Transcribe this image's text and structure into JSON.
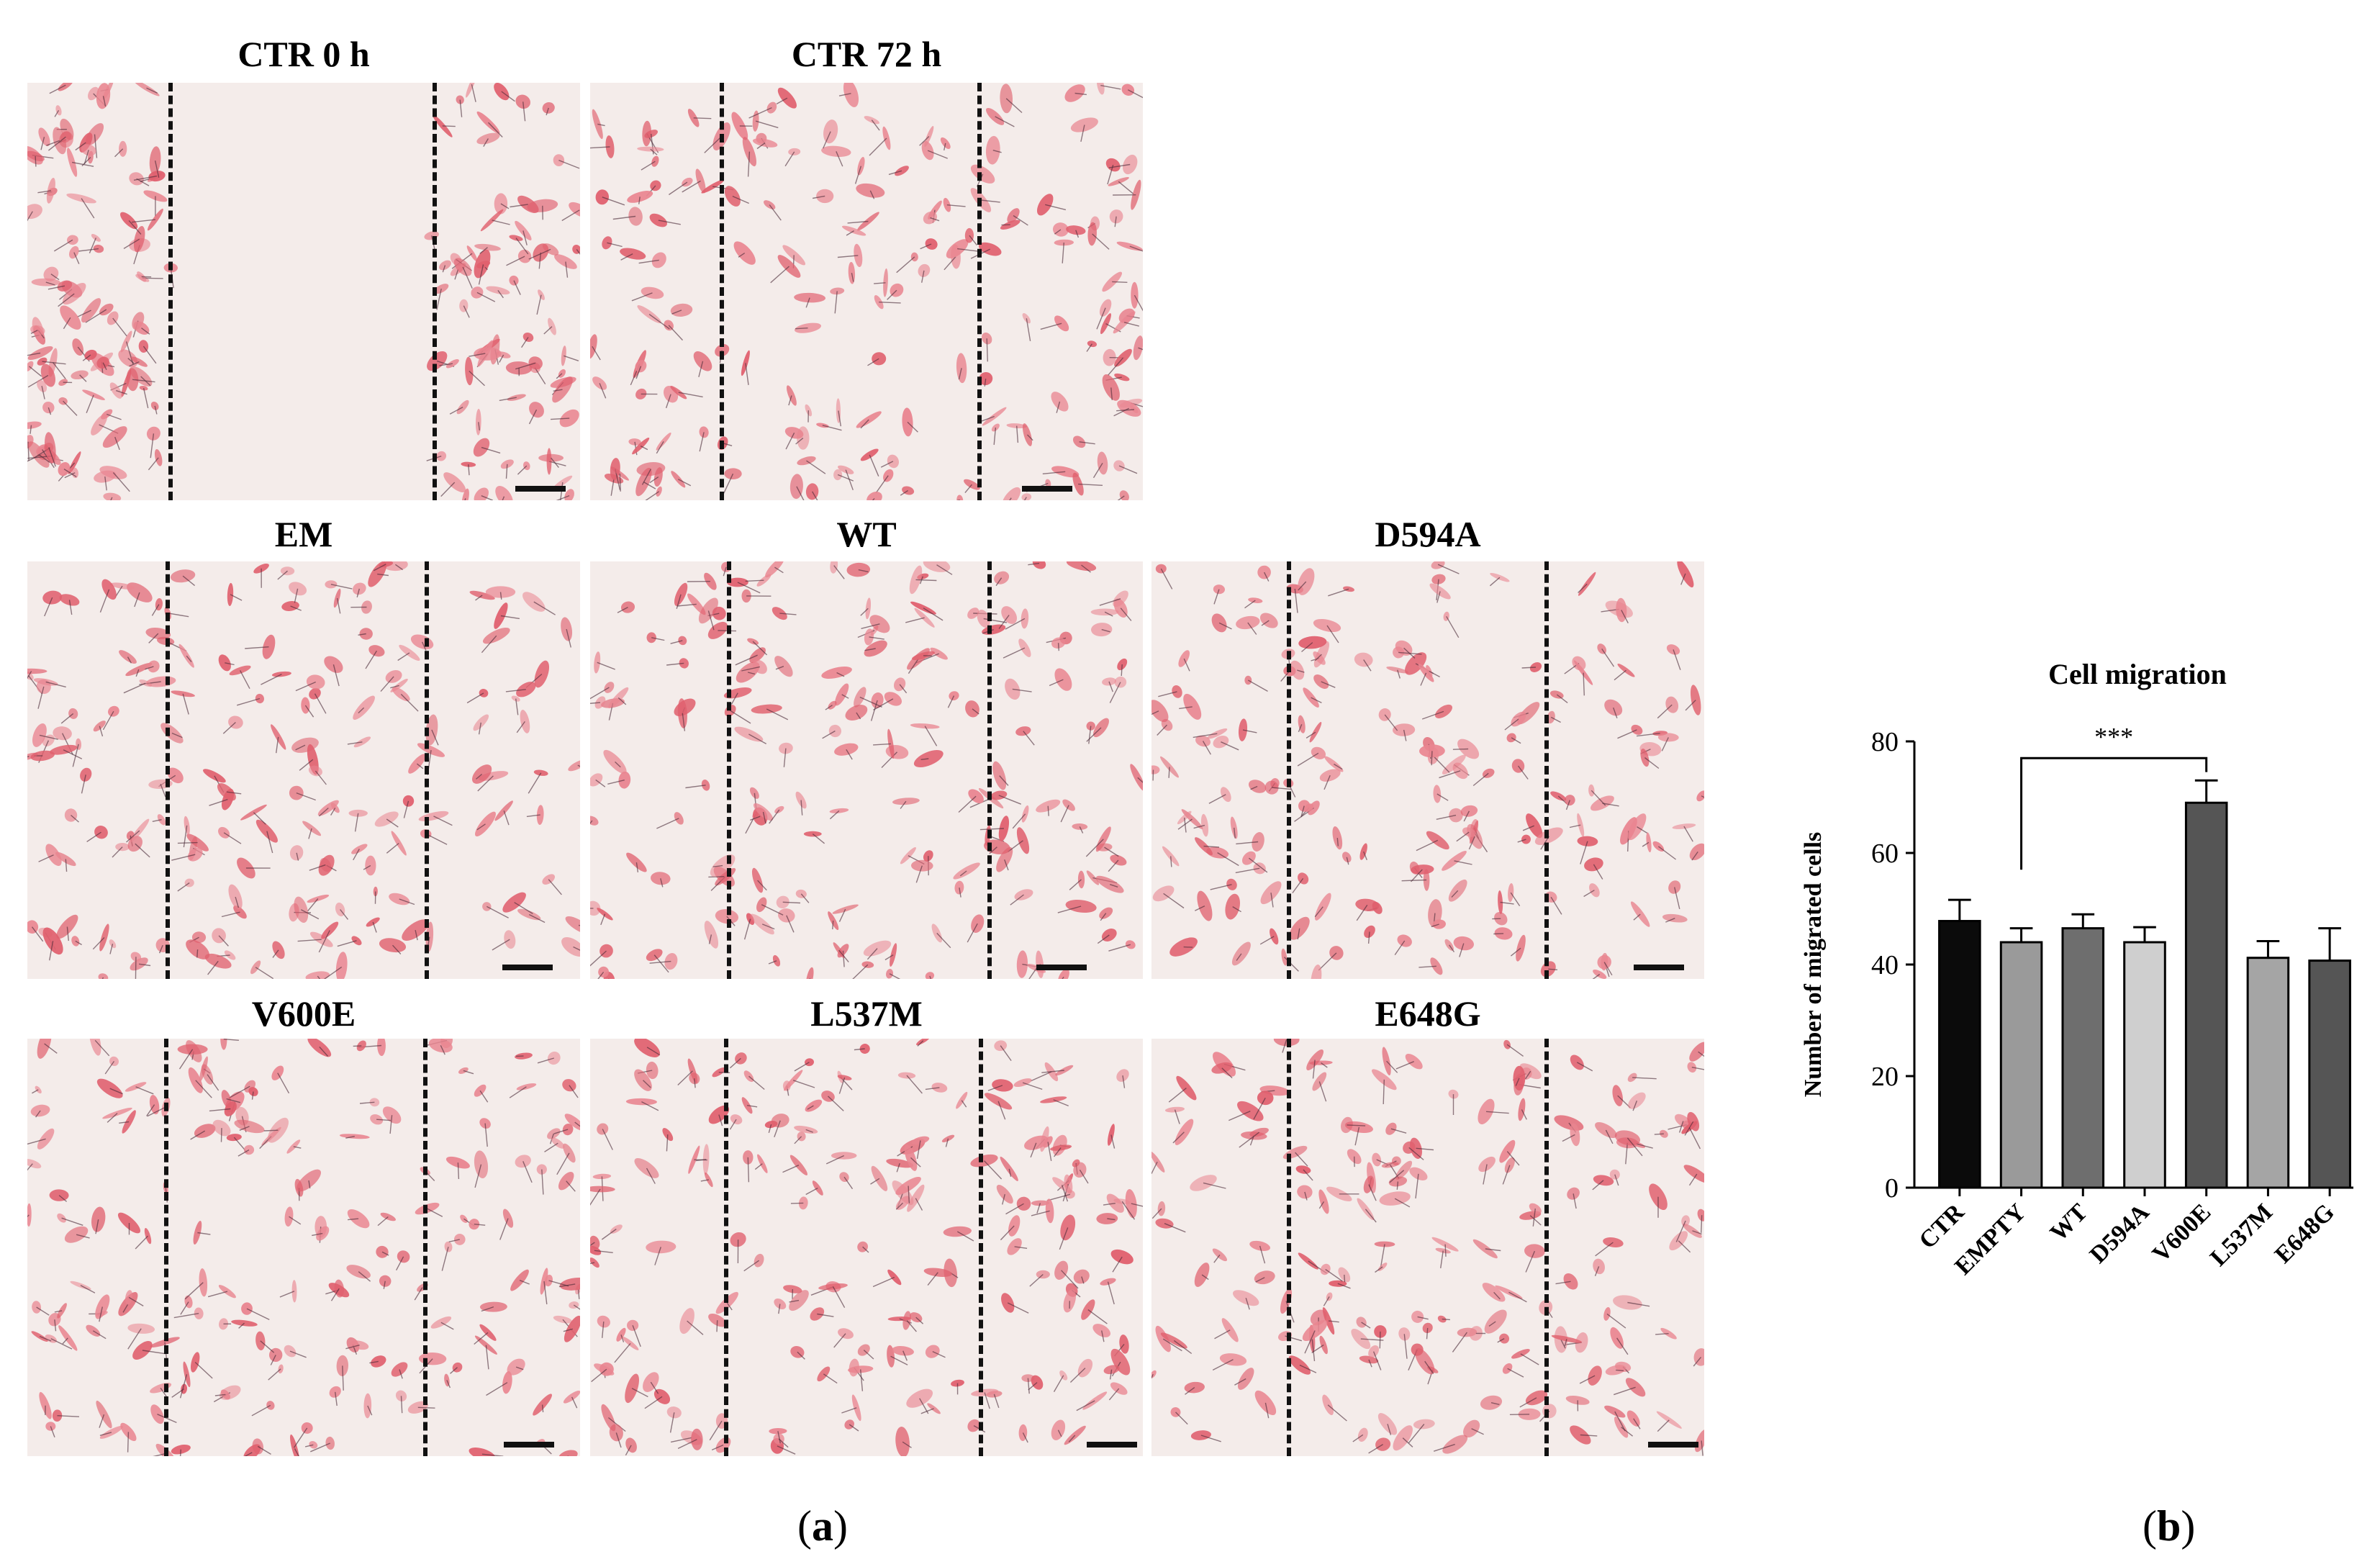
{
  "panel_a": {
    "label": "a",
    "micrographs": [
      {
        "label": "CTR 0 h"
      },
      {
        "label": "CTR 72 h"
      },
      {
        "label": "EM"
      },
      {
        "label": "WT"
      },
      {
        "label": "D594A"
      },
      {
        "label": "V600E"
      },
      {
        "label": "L537M"
      },
      {
        "label": "E648G"
      }
    ]
  },
  "panel_b": {
    "label": "b"
  },
  "chart_data": {
    "type": "bar",
    "title": "Cell migration",
    "xlabel": "",
    "ylabel": "Number of migrated cells",
    "ylim": [
      0,
      80
    ],
    "yticks": [
      0,
      20,
      40,
      60,
      80
    ],
    "categories": [
      "CTR",
      "EMPTY",
      "WT",
      "D594A",
      "V600E",
      "L537M",
      "E648G"
    ],
    "values": [
      47.8,
      44.0,
      46.5,
      44.0,
      69.0,
      41.2,
      40.7
    ],
    "errors": [
      3.8,
      2.5,
      2.5,
      2.7,
      4.0,
      3.0,
      5.8
    ],
    "colors": [
      "#0b0b0b",
      "#9a9a9a",
      "#6e6e6e",
      "#cfcfcf",
      "#555555",
      "#a5a5a5",
      "#555555"
    ],
    "grid": false,
    "annotations": [
      {
        "text": "***",
        "from": "EMPTY",
        "to": "V600E"
      }
    ]
  }
}
